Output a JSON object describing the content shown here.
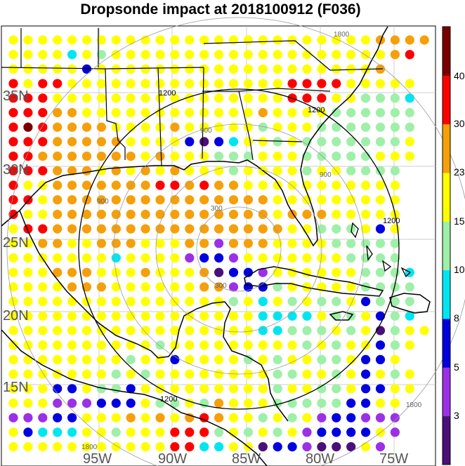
{
  "title": "Dropsonde impact at 2018100912 (F036)",
  "map": {
    "lat_labels": [
      "35N",
      "30N",
      "25N",
      "20N",
      "15N"
    ],
    "lon_labels": [
      "95W",
      "90W",
      "85W",
      "80W",
      "75W"
    ],
    "range_ring_labels_km": [
      "300",
      "300",
      "900",
      "900",
      "900",
      "1200",
      "1200",
      "1200",
      "1200",
      "1800",
      "1800",
      "1800"
    ],
    "dot_colors_by_class": {
      "class0": "#4b0f78",
      "class3": "#9b30e6",
      "class5": "#0000e0",
      "class8": "#00e6f0",
      "class10": "#9ef0a8",
      "class15": "#ffff00",
      "class23": "#f5a00a",
      "class30": "#ff0000",
      "class40": "#7a0000"
    }
  },
  "colorbar": {
    "tick_labels": [
      "40",
      "30",
      "23",
      "15",
      "10",
      "8",
      "5",
      "3"
    ],
    "colors": [
      "#4b0f78",
      "#9b30e6",
      "#0000e0",
      "#00e6f0",
      "#9ef0a8",
      "#ffff00",
      "#f5a00a",
      "#ff0000",
      "#7a0000"
    ]
  }
}
